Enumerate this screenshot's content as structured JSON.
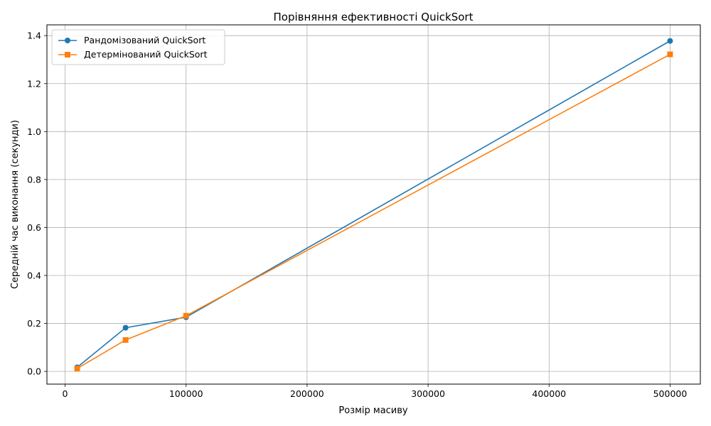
{
  "chart_data": {
    "type": "line",
    "title": "Порівняння ефективності QuickSort",
    "xlabel": "Розмір масиву",
    "ylabel": "Середній час виконання (секунди)",
    "xlim": [
      -15000,
      525000
    ],
    "ylim": [
      -0.053,
      1.445
    ],
    "xticks": [
      0,
      100000,
      200000,
      300000,
      400000,
      500000
    ],
    "xtick_labels": [
      "0",
      "100000",
      "200000",
      "300000",
      "400000",
      "500000"
    ],
    "yticks": [
      0.0,
      0.2,
      0.4,
      0.6,
      0.8,
      1.0,
      1.2,
      1.4
    ],
    "ytick_labels": [
      "0.0",
      "0.2",
      "0.4",
      "0.6",
      "0.8",
      "1.0",
      "1.2",
      "1.4"
    ],
    "grid": true,
    "legend_position": "top-left",
    "x": [
      10000,
      50000,
      100000,
      500000
    ],
    "series": [
      {
        "name": "Рандомізований QuickSort",
        "values": [
          0.017,
          0.182,
          0.226,
          1.378
        ],
        "color": "#1f77b4",
        "marker": "circle"
      },
      {
        "name": "Детермінований QuickSort",
        "values": [
          0.012,
          0.131,
          0.232,
          1.322
        ],
        "color": "#ff7f0e",
        "marker": "square"
      }
    ]
  }
}
